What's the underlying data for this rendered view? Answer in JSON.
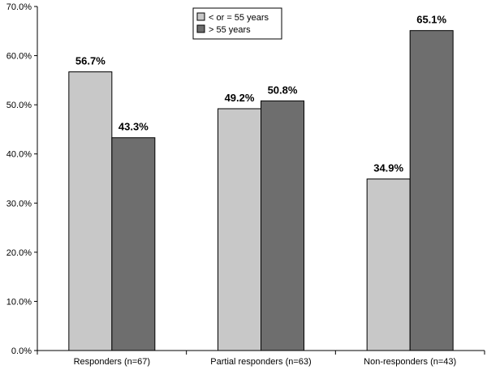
{
  "chart_data": {
    "type": "bar",
    "categories": [
      "Responders (n=67)",
      "Partial responders (n=63)",
      "Non-responders (n=43)"
    ],
    "series": [
      {
        "name": "< or = 55 years",
        "values": [
          56.7,
          49.2,
          34.9
        ],
        "color": "#c8c8c8"
      },
      {
        "name": "> 55 years",
        "values": [
          43.3,
          50.8,
          65.1
        ],
        "color": "#6e6e6e"
      }
    ],
    "data_labels": [
      [
        "56.7%",
        "49.2%",
        "34.9%"
      ],
      [
        "43.3%",
        "50.8%",
        "65.1%"
      ]
    ],
    "y_ticks": [
      0,
      10,
      20,
      30,
      40,
      50,
      60,
      70
    ],
    "y_tick_labels": [
      "0.0%",
      "10.0%",
      "20.0%",
      "30.0%",
      "40.0%",
      "50.0%",
      "60.0%",
      "70.0%"
    ],
    "ylim": [
      0,
      70
    ],
    "grid": false,
    "legend_position": "top-center",
    "title": "",
    "xlabel": "",
    "ylabel": ""
  }
}
